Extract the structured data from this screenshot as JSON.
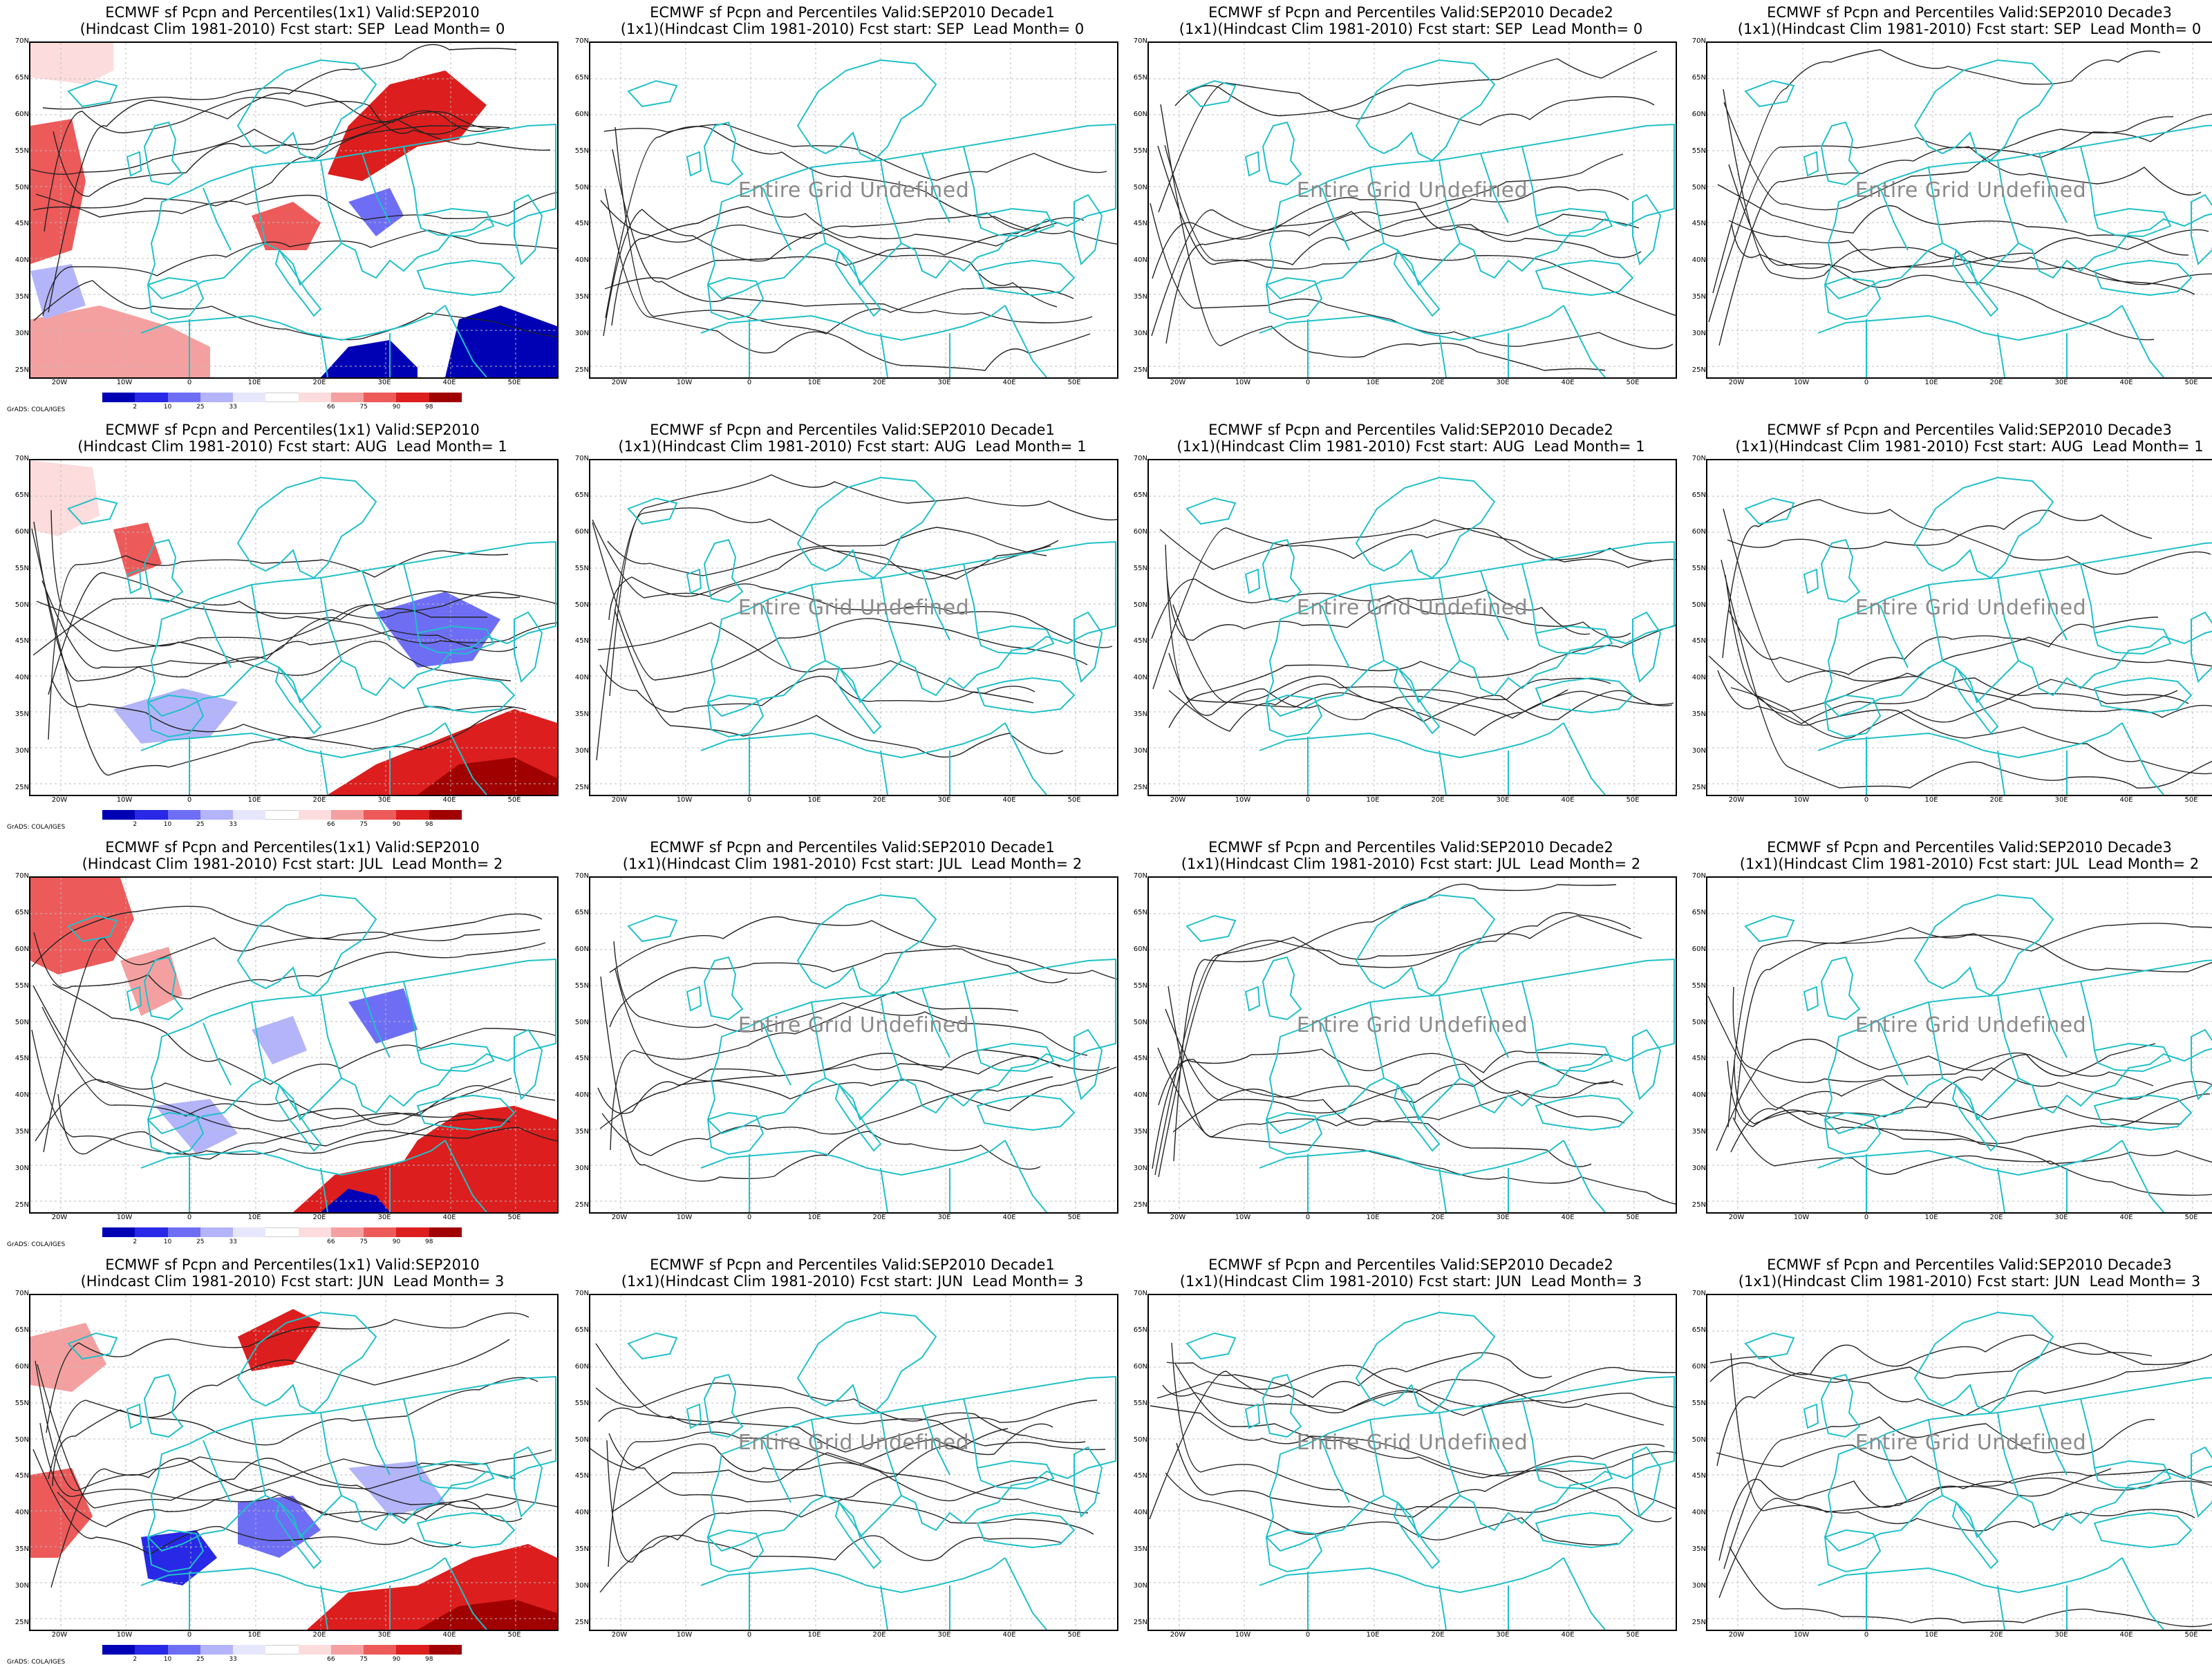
{
  "undefined_text": "Entire Grid Undefined",
  "credit_text": "GrADS: COLA/IGES",
  "lat_labels": [
    "70N",
    "65N",
    "60N",
    "55N",
    "50N",
    "45N",
    "40N",
    "35N",
    "30N",
    "25N"
  ],
  "lon_labels": [
    "20W",
    "10W",
    "0",
    "10E",
    "20E",
    "30E",
    "40E",
    "50E"
  ],
  "colorbar": {
    "labels": [
      "2",
      "10",
      "25",
      "33",
      "66",
      "75",
      "90",
      "98"
    ],
    "colors": [
      "#0000b4",
      "#2828e6",
      "#6e6ef5",
      "#b4b4fa",
      "#e6e6fc",
      "#ffffff",
      "#fcdcdc",
      "#f5a0a0",
      "#ed5a5a",
      "#dc1e1e",
      "#a00000"
    ]
  },
  "colors": {
    "coast": "#20c0c8",
    "contour": "#222222",
    "grid": "#bbbbbb"
  },
  "rows": [
    {
      "lead_label": "Lead Month= 0",
      "monthly": {
        "line1": "ECMWF sf Pcpn and Percentiles(1x1) Valid:SEP2010",
        "line2": "(Hindcast Clim 1981-2010) Fcst start: SEP  Lead Month= 0"
      },
      "decades": [
        {
          "line1": "ECMWF sf Pcpn and Percentiles Valid:SEP2010 Decade1",
          "line2": "(1x1)(Hindcast Clim 1981-2010) Fcst start: SEP  Lead Month= 0"
        },
        {
          "line1": "ECMWF sf Pcpn and Percentiles Valid:SEP2010 Decade2",
          "line2": "(1x1)(Hindcast Clim 1981-2010) Fcst start: SEP  Lead Month= 0"
        },
        {
          "line1": "ECMWF sf Pcpn and Percentiles Valid:SEP2010 Decade3",
          "line2": "(1x1)(Hindcast Clim 1981-2010) Fcst start: SEP  Lead Month= 0"
        }
      ]
    },
    {
      "lead_label": "Lead Month= 1",
      "monthly": {
        "line1": "ECMWF sf Pcpn and Percentiles(1x1) Valid:SEP2010",
        "line2": "(Hindcast Clim 1981-2010) Fcst start: AUG  Lead Month= 1"
      },
      "decades": [
        {
          "line1": "ECMWF sf Pcpn and Percentiles Valid:SEP2010 Decade1",
          "line2": "(1x1)(Hindcast Clim 1981-2010) Fcst start: AUG  Lead Month= 1"
        },
        {
          "line1": "ECMWF sf Pcpn and Percentiles Valid:SEP2010 Decade2",
          "line2": "(1x1)(Hindcast Clim 1981-2010) Fcst start: AUG  Lead Month= 1"
        },
        {
          "line1": "ECMWF sf Pcpn and Percentiles Valid:SEP2010 Decade3",
          "line2": "(1x1)(Hindcast Clim 1981-2010) Fcst start: AUG  Lead Month= 1"
        }
      ]
    },
    {
      "lead_label": "Lead Month= 2",
      "monthly": {
        "line1": "ECMWF sf Pcpn and Percentiles(1x1) Valid:SEP2010",
        "line2": "(Hindcast Clim 1981-2010) Fcst start: JUL  Lead Month= 2"
      },
      "decades": [
        {
          "line1": "ECMWF sf Pcpn and Percentiles Valid:SEP2010 Decade1",
          "line2": "(1x1)(Hindcast Clim 1981-2010) Fcst start: JUL  Lead Month= 2"
        },
        {
          "line1": "ECMWF sf Pcpn and Percentiles Valid:SEP2010 Decade2",
          "line2": "(1x1)(Hindcast Clim 1981-2010) Fcst start: JUL  Lead Month= 2"
        },
        {
          "line1": "ECMWF sf Pcpn and Percentiles Valid:SEP2010 Decade3",
          "line2": "(1x1)(Hindcast Clim 1981-2010) Fcst start: JUL  Lead Month= 2"
        }
      ]
    },
    {
      "lead_label": "Lead Month= 3",
      "monthly": {
        "line1": "ECMWF sf Pcpn and Percentiles(1x1) Valid:SEP2010",
        "line2": "(Hindcast Clim 1981-2010) Fcst start: JUN  Lead Month= 3"
      },
      "decades": [
        {
          "line1": "ECMWF sf Pcpn and Percentiles Valid:SEP2010 Decade1",
          "line2": "(1x1)(Hindcast Clim 1981-2010) Fcst start: JUN  Lead Month= 3"
        },
        {
          "line1": "ECMWF sf Pcpn and Percentiles Valid:SEP2010 Decade2",
          "line2": "(1x1)(Hindcast Clim 1981-2010) Fcst start: JUN  Lead Month= 3"
        },
        {
          "line1": "ECMWF sf Pcpn and Percentiles Valid:SEP2010 Decade3",
          "line2": "(1x1)(Hindcast Clim 1981-2010) Fcst start: JUN  Lead Month= 3"
        }
      ]
    }
  ]
}
